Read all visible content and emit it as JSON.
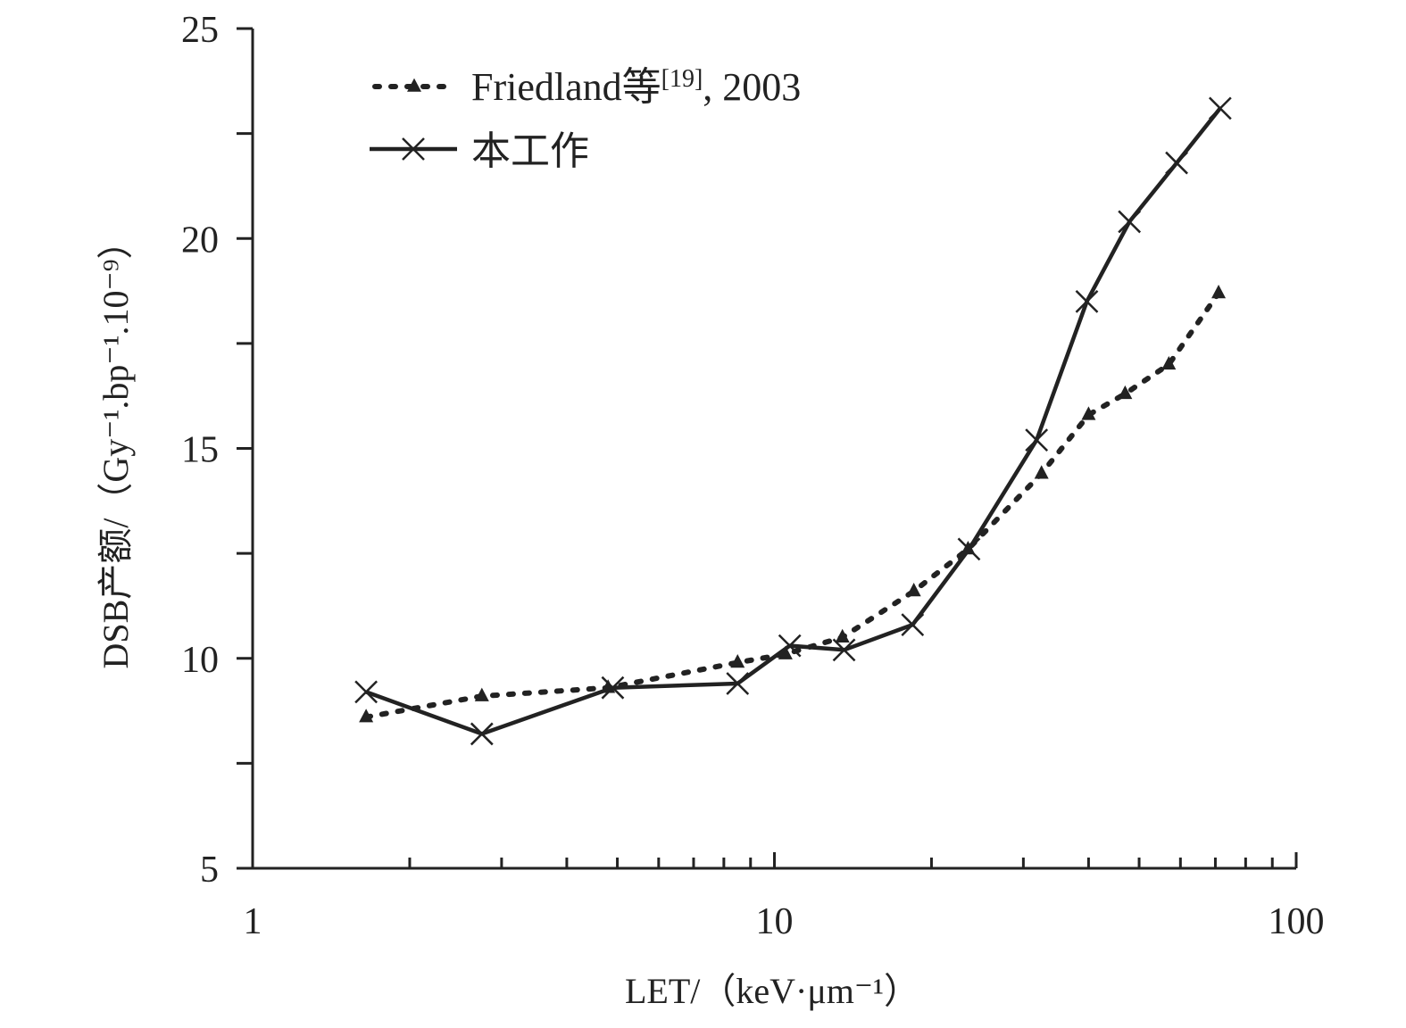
{
  "chart_data": {
    "type": "line",
    "xscale": "log",
    "xlim": [
      1,
      100
    ],
    "ylim": [
      5,
      25
    ],
    "xlabel": "LET/（keV·μm⁻¹）",
    "ylabel": "DSB产额/（Gy⁻¹.bp⁻¹.10⁻⁹）",
    "x_ticks": [
      1,
      10,
      100
    ],
    "x_tick_labels": [
      "1",
      "10",
      "100"
    ],
    "y_ticks": [
      5,
      10,
      15,
      20,
      25
    ],
    "y_tick_labels": [
      "5",
      "10",
      "15",
      "20",
      "25"
    ],
    "grid": false,
    "legend_position": "top-left",
    "series": [
      {
        "name": "Friedland等[19], 2003",
        "name_main": "Friedland等",
        "name_ref": "[19]",
        "name_tail": ", 2003",
        "style": "dotted",
        "marker": "triangle",
        "color": "#222222",
        "x": [
          1.65,
          2.75,
          4.8,
          8.5,
          10.5,
          13.5,
          18.5,
          23.5,
          32.5,
          40,
          47,
          57,
          71
        ],
        "y": [
          8.6,
          9.1,
          9.3,
          9.9,
          10.1,
          10.5,
          11.6,
          12.6,
          14.4,
          15.8,
          16.3,
          17.0,
          18.7
        ]
      },
      {
        "name": "本工作",
        "style": "solid",
        "marker": "x",
        "color": "#222222",
        "x": [
          1.65,
          2.75,
          4.9,
          8.5,
          10.7,
          13.6,
          18.4,
          23.6,
          31.8,
          39.7,
          47.9,
          59.0,
          71.5
        ],
        "y": [
          9.2,
          8.2,
          9.3,
          9.4,
          10.3,
          10.2,
          10.8,
          12.6,
          15.2,
          18.5,
          20.4,
          21.8,
          23.1
        ]
      }
    ]
  }
}
